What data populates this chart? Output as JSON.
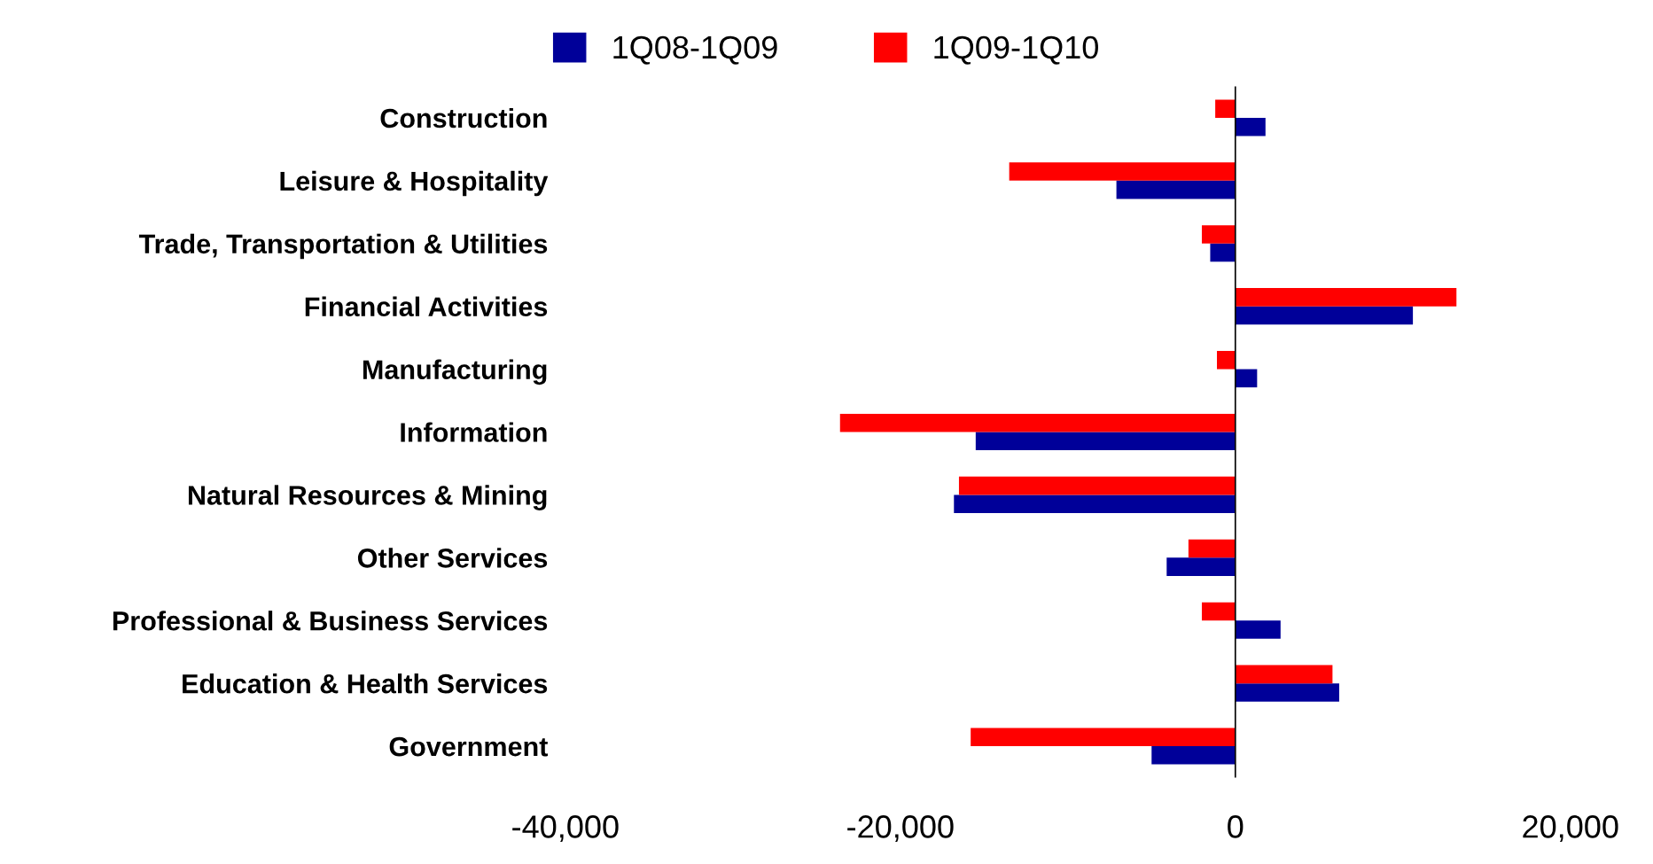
{
  "chart_data": {
    "type": "bar",
    "orientation": "horizontal",
    "categories": [
      "Construction",
      "Leisure & Hospitality",
      "Trade, Transportation & Utilities",
      "Financial Activities",
      "Manufacturing",
      "Information",
      "Natural Resources & Mining",
      "Other Services",
      "Professional & Business Services",
      "Education & Health Services",
      "Government"
    ],
    "series": [
      {
        "name": "1Q08-1Q09",
        "color": "#000099",
        "values": [
          1800,
          -7100,
          -1500,
          10600,
          1300,
          -15500,
          -16800,
          -4100,
          2700,
          6200,
          -5000
        ]
      },
      {
        "name": "1Q09-1Q10",
        "color": "#ff0000",
        "values": [
          -1200,
          -13500,
          -2000,
          13200,
          -1100,
          -23600,
          -16500,
          -2800,
          -2000,
          5800,
          -15800
        ]
      }
    ],
    "xlim": [
      -40000,
      20000
    ],
    "xticks": [
      {
        "value": -40000,
        "label": "-40,000"
      },
      {
        "value": -20000,
        "label": "-20,000"
      },
      0,
      {
        "value": 20000,
        "label": "20,000"
      }
    ],
    "ref_lines": [
      {
        "axis": "x",
        "value": 0,
        "color": "#000000"
      }
    ],
    "legend": "top"
  }
}
